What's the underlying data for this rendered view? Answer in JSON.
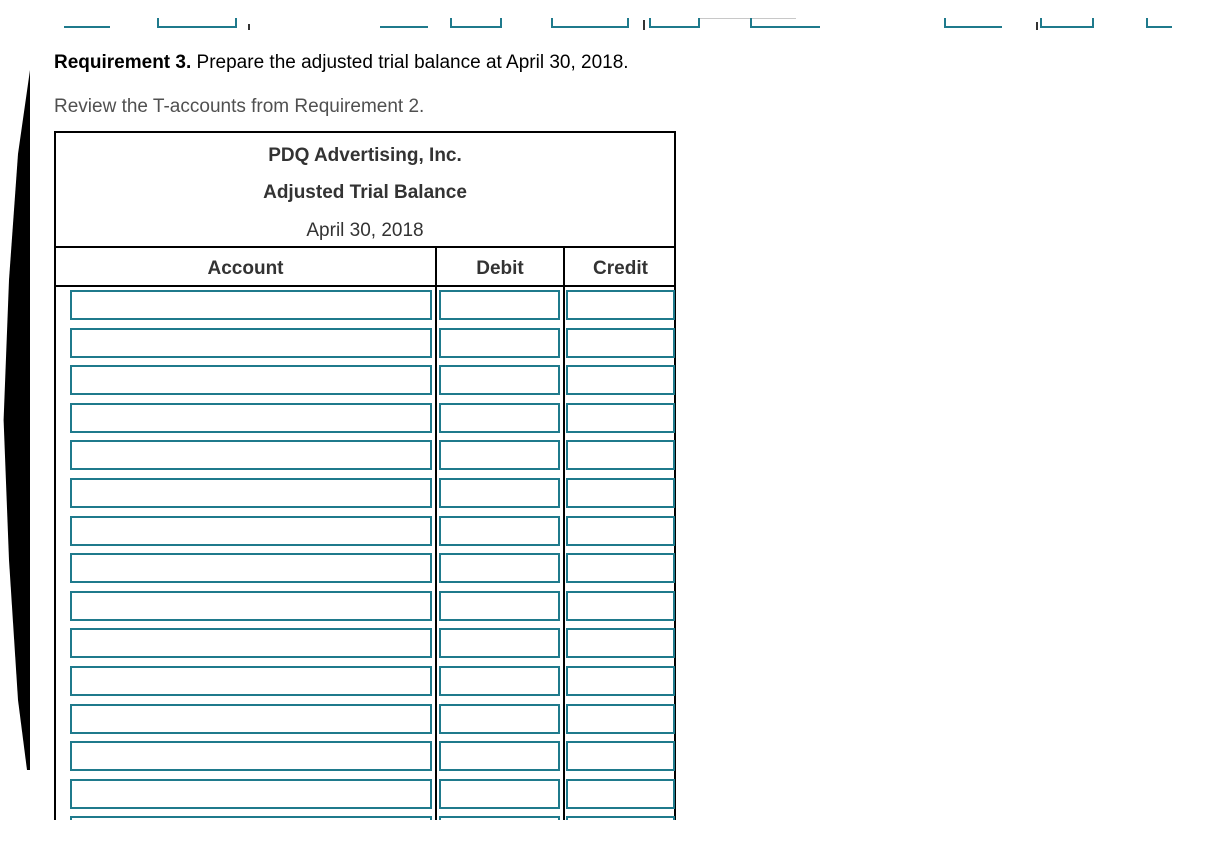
{
  "requirement": {
    "label": "Requirement 3.",
    "text": " Prepare the adjusted trial balance at April 30, 2018."
  },
  "review_text": "Review the T-accounts from Requirement 2.",
  "table": {
    "company": "PDQ Advertising, Inc.",
    "title": "Adjusted Trial Balance",
    "date": "April 30, 2018",
    "columns": {
      "account": "Account",
      "debit": "Debit",
      "credit": "Credit"
    },
    "row_count": 15
  },
  "colors": {
    "accent": "#1f7a8c"
  }
}
